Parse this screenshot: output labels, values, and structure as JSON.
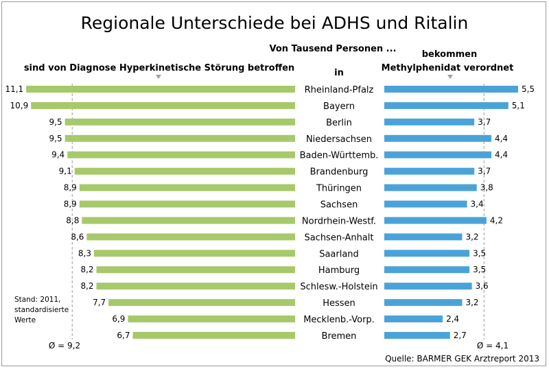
{
  "chart_data": {
    "type": "bar",
    "title": "Regionale Unterschiede bei ADHS und Ritalin",
    "subtitle": "Von Tausend Personen ...",
    "in_label": "in",
    "categories": [
      "Rheinland-Pfalz",
      "Bayern",
      "Berlin",
      "Niedersachsen",
      "Baden-Württemb.",
      "Brandenburg",
      "Thüringen",
      "Sachsen",
      "Nordrhein-Westf.",
      "Sachsen-Anhalt",
      "Saarland",
      "Hamburg",
      "Schlesw.-Holstein",
      "Hessen",
      "Mecklenb.-Vorp.",
      "Bremen"
    ],
    "series": [
      {
        "name": "sind von Diagnose Hyperkinetische Störung betroffen",
        "color": "#a6c96a",
        "values": [
          11.1,
          10.9,
          9.5,
          9.5,
          9.4,
          9.1,
          8.9,
          8.9,
          8.8,
          8.6,
          8.3,
          8.2,
          8.2,
          7.7,
          6.9,
          6.7
        ],
        "labels": [
          "11,1",
          "10,9",
          "9,5",
          "9,5",
          "9,4",
          "9,1",
          "8,9",
          "8,9",
          "8,8",
          "8,6",
          "8,3",
          "8,2",
          "8,2",
          "7,7",
          "6,9",
          "6,7"
        ],
        "average": 9.2,
        "average_label": "Ø = 9,2"
      },
      {
        "name_line1": "bekommen",
        "name_line2": "Methylphenidat verordnet",
        "color": "#4aa3d8",
        "values": [
          5.5,
          5.1,
          3.7,
          4.4,
          4.4,
          3.7,
          3.8,
          3.4,
          4.2,
          3.2,
          3.5,
          3.5,
          3.6,
          3.2,
          2.4,
          2.7
        ],
        "labels": [
          "5,5",
          "5,1",
          "3,7",
          "4,4",
          "4,4",
          "3,7",
          "3,8",
          "3,4",
          "4,2",
          "3,2",
          "3,5",
          "3,5",
          "3,6",
          "3,2",
          "2,4",
          "2,7"
        ],
        "average": 4.1,
        "average_label": "Ø = 4,1"
      }
    ],
    "note": [
      "Stand: 2011,",
      "standardisierte",
      "Werte"
    ],
    "source": "Quelle: BARMER GEK Arztreport 2013"
  }
}
